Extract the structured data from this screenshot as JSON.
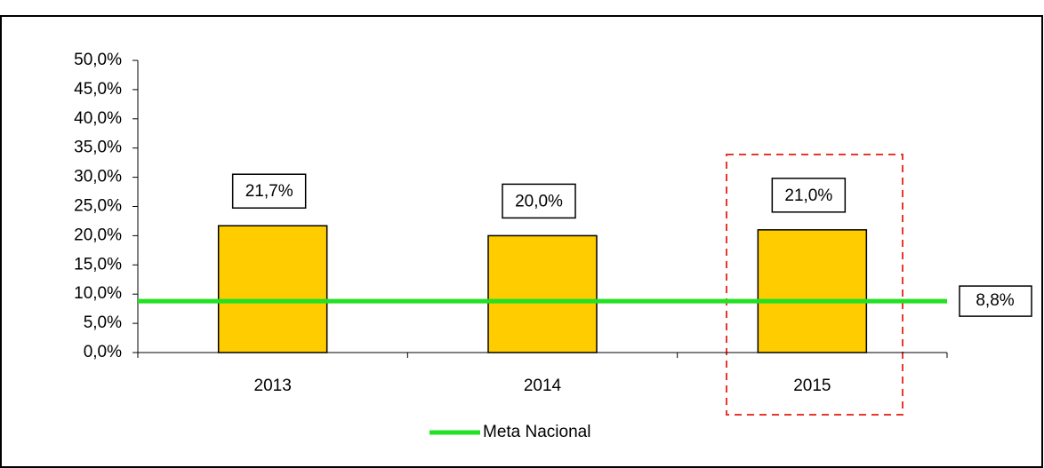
{
  "chart_data": {
    "type": "bar",
    "categories": [
      "2013",
      "2014",
      "2015"
    ],
    "values": [
      21.7,
      20.0,
      21.0
    ],
    "value_labels": [
      "21,7%",
      "20,0%",
      "21,0%"
    ],
    "color": "#ffcc00",
    "ylim": [
      0,
      50
    ],
    "yticks": [
      {
        "value": 0,
        "label": "0,0%"
      },
      {
        "value": 5,
        "label": "5,0%"
      },
      {
        "value": 10,
        "label": "10,0%"
      },
      {
        "value": 15,
        "label": "15,0%"
      },
      {
        "value": 20,
        "label": "20,0%"
      },
      {
        "value": 25,
        "label": "25,0%"
      },
      {
        "value": 30,
        "label": "30,0%"
      },
      {
        "value": 35,
        "label": "35,0%"
      },
      {
        "value": 40,
        "label": "40,0%"
      },
      {
        "value": 45,
        "label": "45,0%"
      },
      {
        "value": 50,
        "label": "50,0%"
      }
    ],
    "reference_line": {
      "name": "Meta Nacional",
      "value": 8.8,
      "value_label": "8,8%",
      "color": "#22e022"
    },
    "legend": "bottom"
  }
}
